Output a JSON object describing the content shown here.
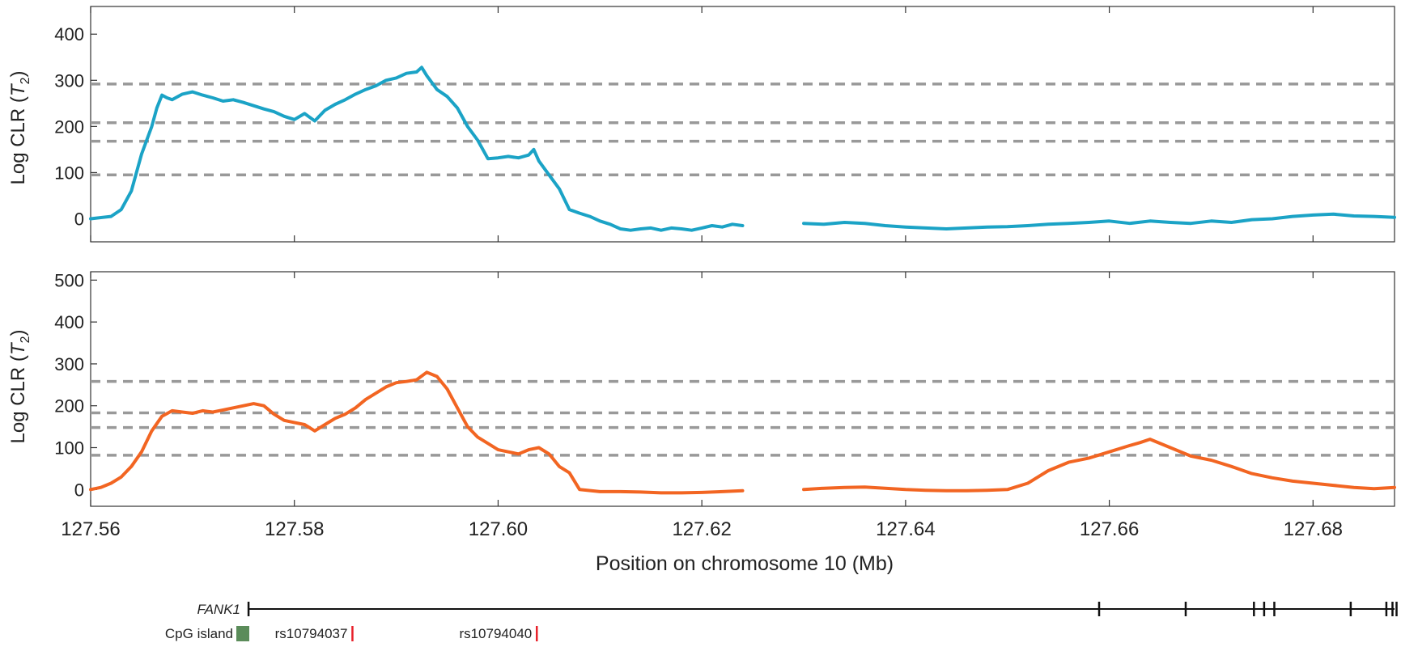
{
  "colors": {
    "top_series": "#1ba3c6",
    "bottom_series": "#f26522",
    "threshold": "#999999",
    "cpg": "#5b8c5a",
    "snp": "#e8202a",
    "axis": "#333333"
  },
  "xlabel": "Position on chromosome 10 (Mb)",
  "x_ticks": [
    "127.56",
    "127.58",
    "127.60",
    "127.62",
    "127.64",
    "127.66",
    "127.68"
  ],
  "chart_data": [
    {
      "type": "line",
      "ylabel_main": "Log CLR (",
      "ylabel_italic": "T",
      "ylabel_sub": "2",
      "ylabel_close": ")",
      "xlim": [
        127.56,
        127.688
      ],
      "ylim": [
        -50,
        460
      ],
      "y_ticks": [
        "0",
        "100",
        "200",
        "300",
        "400"
      ],
      "thresholds": [
        95,
        168,
        208,
        292
      ],
      "series": [
        {
          "segments": [
            {
              "x": [
                127.56,
                127.562,
                127.563,
                127.564,
                127.565,
                127.566,
                127.5665,
                127.567,
                127.5675,
                127.568,
                127.569,
                127.57,
                127.571,
                127.572,
                127.573,
                127.574,
                127.575,
                127.576,
                127.577,
                127.578,
                127.579,
                127.58,
                127.581,
                127.582,
                127.583,
                127.584,
                127.585,
                127.586,
                127.587,
                127.588,
                127.589,
                127.59,
                127.591,
                127.592,
                127.5925,
                127.593,
                127.594,
                127.595,
                127.596,
                127.597,
                127.598,
                127.599,
                127.6,
                127.601,
                127.602,
                127.603,
                127.6035,
                127.604,
                127.605,
                127.606,
                127.607,
                127.608,
                127.609,
                127.61,
                127.611,
                127.612,
                127.613,
                127.614,
                127.615,
                127.616,
                127.617,
                127.618,
                127.619,
                127.62,
                127.621,
                127.622,
                127.623,
                127.624
              ],
              "y": [
                0,
                5,
                20,
                60,
                140,
                200,
                240,
                268,
                262,
                258,
                270,
                275,
                268,
                262,
                255,
                258,
                252,
                245,
                238,
                232,
                222,
                215,
                228,
                212,
                235,
                248,
                258,
                270,
                280,
                288,
                300,
                305,
                315,
                318,
                328,
                310,
                280,
                265,
                240,
                200,
                170,
                130,
                132,
                135,
                132,
                138,
                150,
                125,
                95,
                65,
                20,
                12,
                5,
                -5,
                -12,
                -22,
                -25,
                -22,
                -20,
                -25,
                -20,
                -22,
                -25,
                -20,
                -15,
                -18,
                -12,
                -15
              ]
            },
            {
              "x": [
                127.63,
                127.632,
                127.634,
                127.636,
                127.638,
                127.64,
                127.642,
                127.644,
                127.646,
                127.648,
                127.65,
                127.652,
                127.654,
                127.656,
                127.658,
                127.66,
                127.662,
                127.664,
                127.666,
                127.668,
                127.67,
                127.672,
                127.674,
                127.676,
                127.678,
                127.68,
                127.682,
                127.684,
                127.686,
                127.688
              ],
              "y": [
                -10,
                -12,
                -8,
                -10,
                -15,
                -18,
                -20,
                -22,
                -20,
                -18,
                -17,
                -15,
                -12,
                -10,
                -8,
                -5,
                -10,
                -5,
                -8,
                -10,
                -5,
                -8,
                -2,
                0,
                5,
                8,
                10,
                6,
                5,
                3
              ]
            }
          ]
        }
      ]
    },
    {
      "type": "line",
      "ylabel_main": "Log CLR (",
      "ylabel_italic": "T",
      "ylabel_sub": "2",
      "ylabel_close": ")",
      "xlim": [
        127.56,
        127.688
      ],
      "ylim": [
        -40,
        520
      ],
      "y_ticks": [
        "0",
        "100",
        "200",
        "300",
        "400",
        "500"
      ],
      "thresholds": [
        82,
        148,
        183,
        258
      ],
      "series": [
        {
          "segments": [
            {
              "x": [
                127.56,
                127.561,
                127.562,
                127.563,
                127.564,
                127.565,
                127.566,
                127.567,
                127.568,
                127.569,
                127.57,
                127.571,
                127.572,
                127.573,
                127.574,
                127.575,
                127.576,
                127.577,
                127.578,
                127.579,
                127.58,
                127.581,
                127.582,
                127.583,
                127.584,
                127.585,
                127.586,
                127.587,
                127.588,
                127.589,
                127.59,
                127.591,
                127.592,
                127.593,
                127.594,
                127.595,
                127.596,
                127.597,
                127.598,
                127.599,
                127.6,
                127.601,
                127.602,
                127.603,
                127.604,
                127.605,
                127.606,
                127.607,
                127.608,
                127.61,
                127.612,
                127.614,
                127.616,
                127.618,
                127.62,
                127.622,
                127.624
              ],
              "y": [
                0,
                5,
                15,
                30,
                55,
                90,
                140,
                175,
                188,
                185,
                182,
                188,
                185,
                190,
                195,
                200,
                205,
                200,
                180,
                165,
                160,
                155,
                140,
                155,
                170,
                180,
                195,
                215,
                230,
                245,
                255,
                258,
                262,
                280,
                270,
                240,
                195,
                150,
                125,
                110,
                95,
                90,
                85,
                95,
                100,
                85,
                55,
                40,
                0,
                -5,
                -5,
                -6,
                -8,
                -8,
                -7,
                -5,
                -3
              ]
            },
            {
              "x": [
                127.63,
                127.632,
                127.634,
                127.636,
                127.638,
                127.64,
                127.642,
                127.644,
                127.646,
                127.648,
                127.65,
                127.652,
                127.654,
                127.656,
                127.658,
                127.66,
                127.662,
                127.663,
                127.664,
                127.666,
                127.668,
                127.67,
                127.672,
                127.674,
                127.676,
                127.678,
                127.68,
                127.682,
                127.684,
                127.686,
                127.688
              ],
              "y": [
                0,
                3,
                5,
                6,
                3,
                0,
                -2,
                -3,
                -3,
                -2,
                0,
                15,
                45,
                65,
                75,
                90,
                105,
                112,
                120,
                100,
                80,
                70,
                55,
                38,
                28,
                20,
                15,
                10,
                5,
                2,
                5
              ]
            }
          ]
        }
      ]
    }
  ],
  "gene_track": {
    "gene_name": "FANK1",
    "gene_start": 127.5755,
    "gene_end": 127.688,
    "exons": [
      127.5755,
      127.659,
      127.6675,
      127.6742,
      127.6752,
      127.6762,
      127.6837,
      127.6872,
      127.6878,
      127.6882
    ],
    "cpg_label": "CpG island",
    "snps": [
      {
        "name": "rs10794037",
        "pos": 127.5857
      },
      {
        "name": "rs10794040",
        "pos": 127.6038
      }
    ]
  }
}
